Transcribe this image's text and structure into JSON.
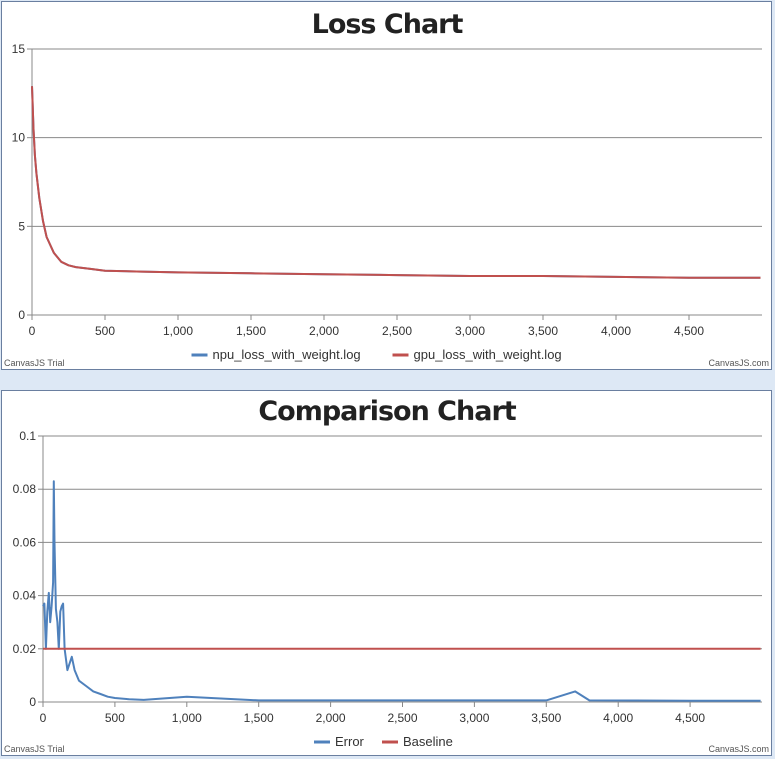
{
  "chart_data": [
    {
      "id": "loss",
      "type": "line",
      "title": "Loss Chart",
      "xlim": [
        0,
        5000
      ],
      "ylim": [
        0,
        15
      ],
      "x_ticks": [
        0,
        500,
        1000,
        1500,
        2000,
        2500,
        3000,
        3500,
        4000,
        4500
      ],
      "x_tick_labels": [
        "0",
        "500",
        "1,000",
        "1,500",
        "2,000",
        "2,500",
        "3,000",
        "3,500",
        "4,000",
        "4,500"
      ],
      "y_ticks": [
        0,
        5,
        10,
        15
      ],
      "y_tick_labels": [
        "0",
        "5",
        "10",
        "15"
      ],
      "grid": "horizontal",
      "legend_position": "bottom",
      "series": [
        {
          "name": "npu_loss_with_weight.log",
          "color": "#4f81bc",
          "x": [
            0,
            10,
            20,
            30,
            50,
            75,
            100,
            150,
            200,
            250,
            300,
            400,
            500,
            750,
            1000,
            1500,
            2000,
            2500,
            3000,
            3500,
            4000,
            4500,
            4990
          ],
          "y": [
            12.9,
            10.5,
            9.0,
            8.0,
            6.6,
            5.3,
            4.4,
            3.5,
            3.0,
            2.8,
            2.7,
            2.6,
            2.5,
            2.45,
            2.4,
            2.35,
            2.3,
            2.25,
            2.2,
            2.2,
            2.15,
            2.1,
            2.1
          ]
        },
        {
          "name": "gpu_loss_with_weight.log",
          "color": "#c0504e",
          "x": [
            0,
            10,
            20,
            30,
            50,
            75,
            100,
            150,
            200,
            250,
            300,
            400,
            500,
            750,
            1000,
            1500,
            2000,
            2500,
            3000,
            3500,
            4000,
            4500,
            4990
          ],
          "y": [
            12.9,
            10.5,
            9.0,
            8.0,
            6.6,
            5.3,
            4.4,
            3.5,
            3.0,
            2.8,
            2.7,
            2.6,
            2.5,
            2.45,
            2.4,
            2.35,
            2.3,
            2.25,
            2.2,
            2.2,
            2.15,
            2.1,
            2.1
          ]
        }
      ],
      "credits": {
        "left": "CanvasJS Trial",
        "right": "CanvasJS.com"
      }
    },
    {
      "id": "cmp",
      "type": "line",
      "title": "Comparison Chart",
      "xlim": [
        0,
        5000
      ],
      "ylim": [
        0,
        0.1
      ],
      "x_ticks": [
        0,
        500,
        1000,
        1500,
        2000,
        2500,
        3000,
        3500,
        4000,
        4500
      ],
      "x_tick_labels": [
        "0",
        "500",
        "1,000",
        "1,500",
        "2,000",
        "2,500",
        "3,000",
        "3,500",
        "4,000",
        "4,500"
      ],
      "y_ticks": [
        0,
        0.02,
        0.04,
        0.06,
        0.08,
        0.1
      ],
      "y_tick_labels": [
        "0",
        "0.02",
        "0.04",
        "0.06",
        "0.08",
        "0.1"
      ],
      "grid": "horizontal",
      "legend_position": "bottom",
      "series": [
        {
          "name": "Error",
          "color": "#4f81bc",
          "x": [
            0,
            10,
            20,
            30,
            40,
            50,
            60,
            70,
            75,
            80,
            90,
            100,
            110,
            120,
            130,
            140,
            150,
            170,
            200,
            220,
            250,
            300,
            350,
            400,
            450,
            500,
            600,
            700,
            1000,
            1500,
            2000,
            2500,
            3000,
            3500,
            3700,
            3800,
            4500,
            4990
          ],
          "y": [
            0.036,
            0.037,
            0.02,
            0.034,
            0.041,
            0.03,
            0.036,
            0.045,
            0.083,
            0.06,
            0.035,
            0.03,
            0.02,
            0.034,
            0.036,
            0.037,
            0.02,
            0.012,
            0.017,
            0.012,
            0.008,
            0.006,
            0.004,
            0.003,
            0.002,
            0.0015,
            0.001,
            0.0008,
            0.002,
            0.0006,
            0.0006,
            0.0006,
            0.0006,
            0.0006,
            0.004,
            0.0006,
            0.0005,
            0.0005
          ]
        },
        {
          "name": "Baseline",
          "color": "#c0504e",
          "x": [
            0,
            4990
          ],
          "y": [
            0.02,
            0.02
          ]
        }
      ],
      "credits": {
        "left": "CanvasJS Trial",
        "right": "CanvasJS.com"
      }
    }
  ]
}
